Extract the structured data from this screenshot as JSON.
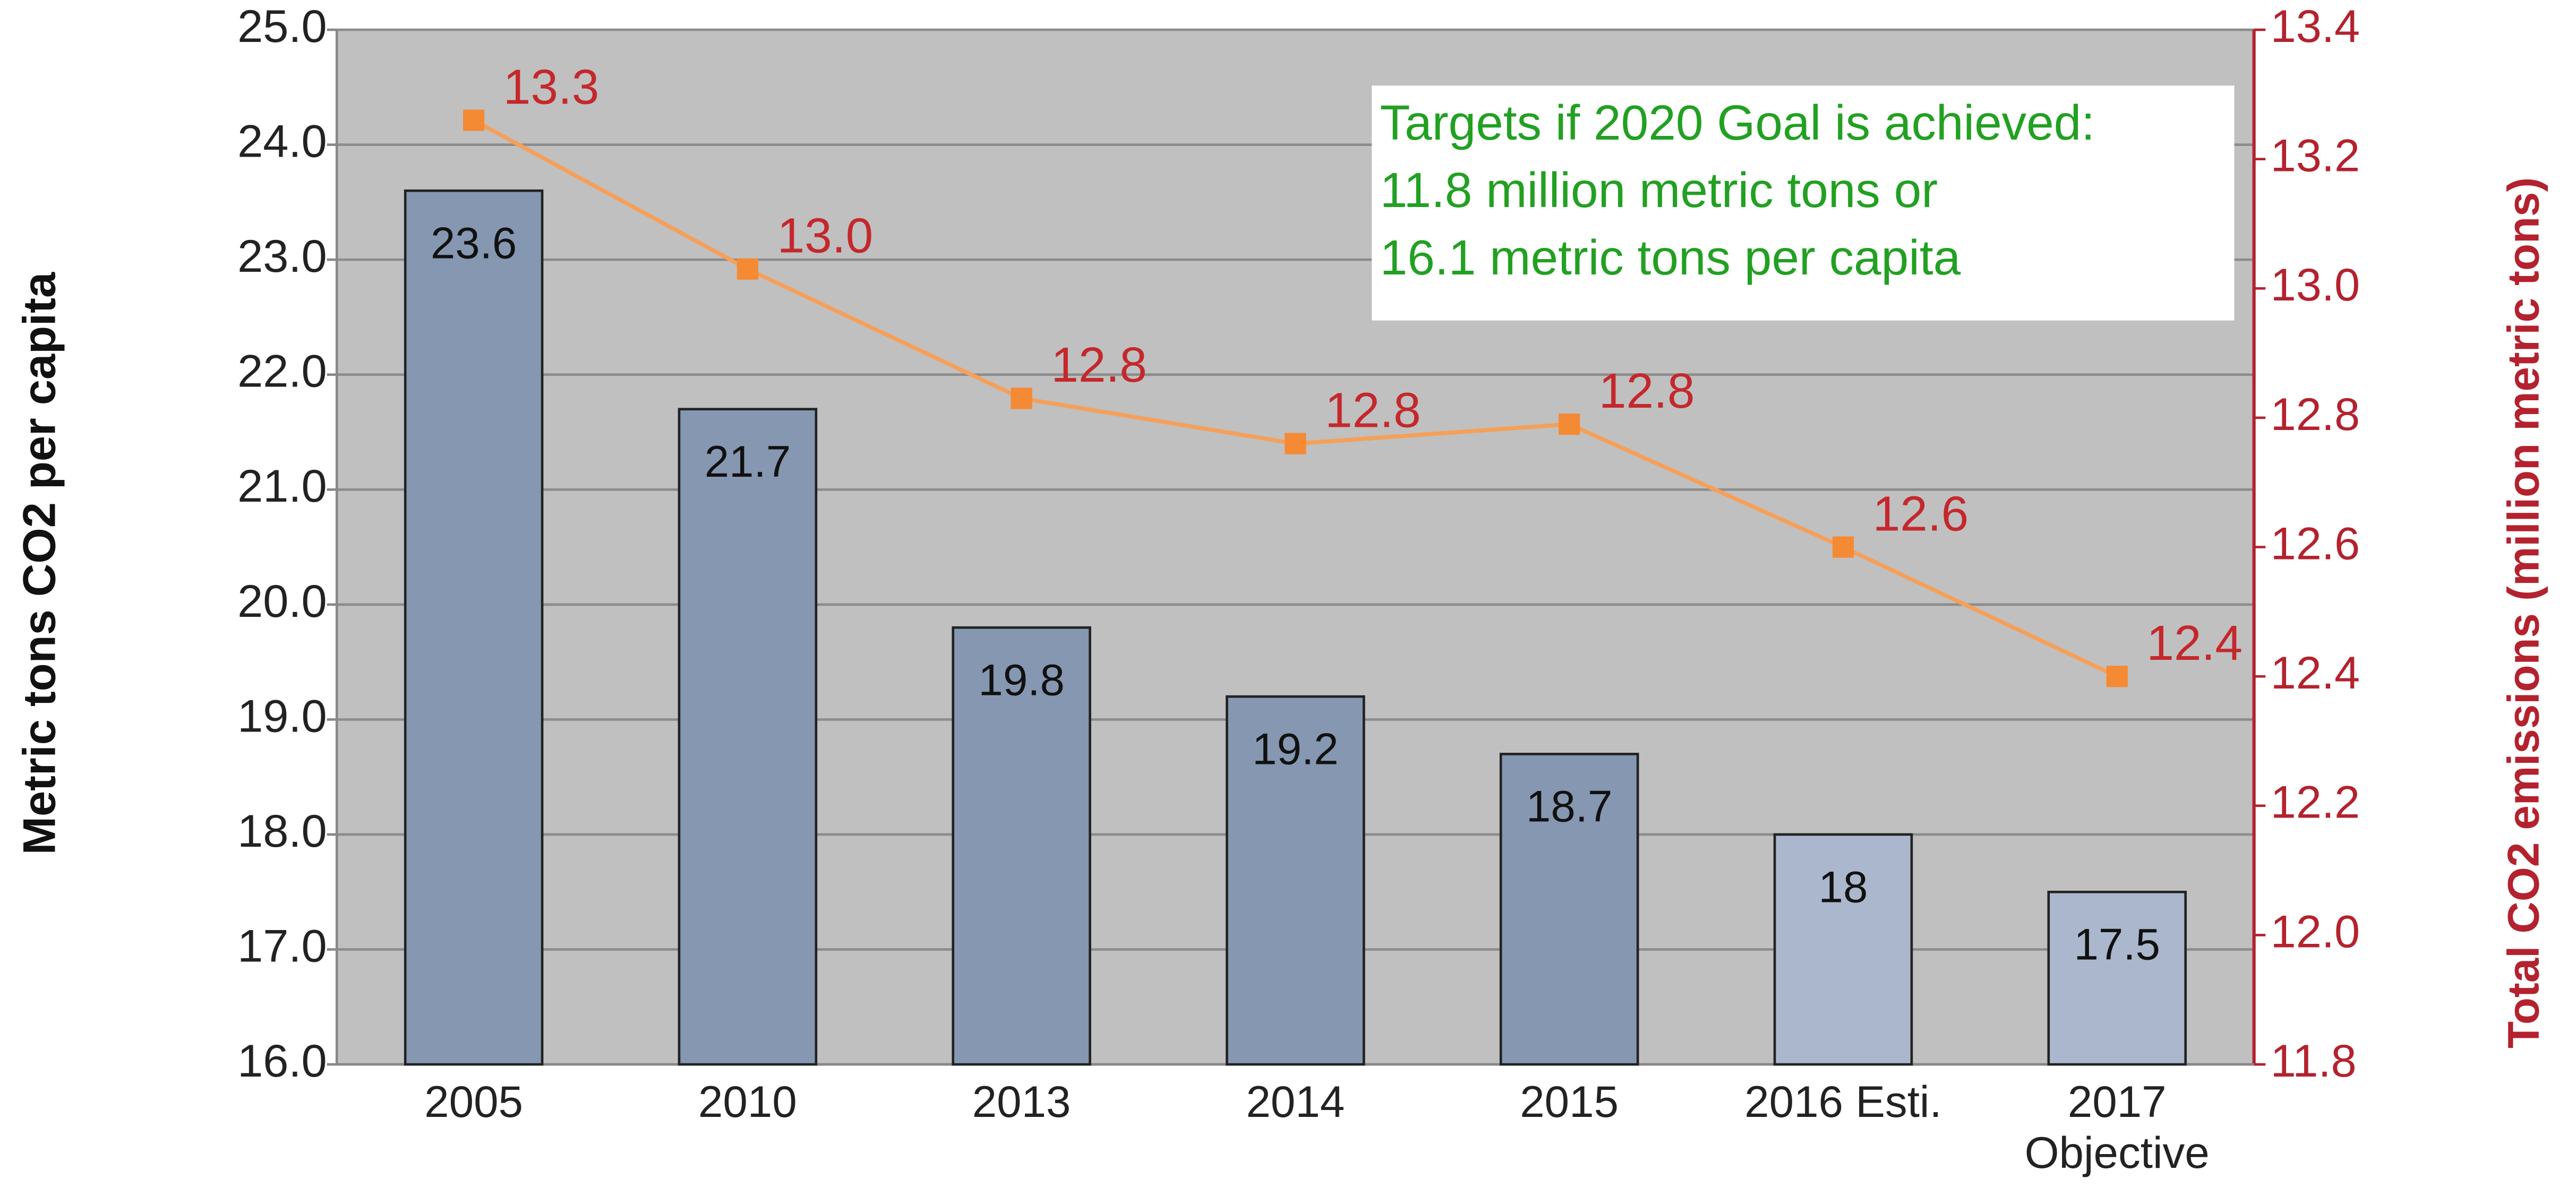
{
  "chart_data": {
    "type": "bar",
    "y_label": "Metric tons CO2 per capita",
    "y2_label": "Total CO2 emissions (million metric tons)",
    "annotation": [
      "Targets if 2020 Goal is achieved:",
      "11.8 million metric tons or",
      "16.1 metric tons per capita"
    ],
    "categories": [
      "2005",
      "2010",
      "2013",
      "2014",
      "2015",
      "2016 Esti.",
      "2017\nObjective"
    ],
    "series": [
      {
        "type": "bar",
        "colors": [
          "#8597b1",
          "#8597b1",
          "#8597b1",
          "#8597b1",
          "#8597b1",
          "#aab7cc",
          "#aab7cc"
        ],
        "values": [
          23.6,
          21.7,
          19.8,
          19.2,
          18.7,
          18,
          17.5
        ]
      },
      {
        "type": "line",
        "axis": "y2",
        "color": "#f5a05a",
        "marker_color": "#f58a35",
        "label_color": "#c4282c",
        "values": [
          13.26,
          13.03,
          12.83,
          12.76,
          12.79,
          12.6,
          12.4
        ],
        "value_labels": [
          "13.3",
          "13.0",
          "12.8",
          "12.8",
          "12.8",
          "12.6",
          "12.4"
        ]
      }
    ],
    "ylim": [
      16,
      25
    ],
    "yticks": [
      {
        "value": 16,
        "label": "16.0"
      },
      {
        "value": 17,
        "label": "17.0"
      },
      {
        "value": 18,
        "label": "18.0"
      },
      {
        "value": 19,
        "label": "19.0"
      },
      {
        "value": 20,
        "label": "20.0"
      },
      {
        "value": 21,
        "label": "21.0"
      },
      {
        "value": 22,
        "label": "22.0"
      },
      {
        "value": 23,
        "label": "23.0"
      },
      {
        "value": 24,
        "label": "24.0"
      },
      {
        "value": 25,
        "label": "25.0"
      }
    ],
    "y2lim": [
      11.8,
      13.4
    ],
    "y2ticks": [
      11.8,
      {
        "value": 12,
        "label": "12.0"
      },
      12.2,
      12.4,
      12.6,
      12.8,
      {
        "value": 13,
        "label": "13.0"
      },
      13.2,
      13.4
    ],
    "grid": true,
    "y2_color": "#b3222e",
    "annotation_color": "#22a022"
  }
}
